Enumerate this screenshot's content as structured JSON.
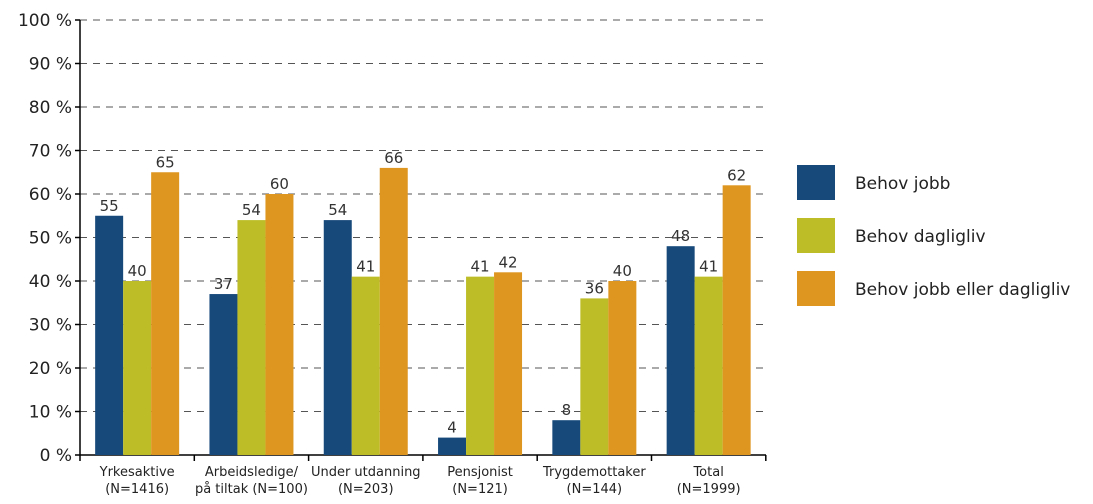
{
  "chart_data": {
    "type": "bar",
    "categories": [
      [
        "Yrkesaktive",
        "(N=1416)"
      ],
      [
        "Arbeidsledige/",
        "på tiltak (N=100)"
      ],
      [
        "Under utdanning",
        "(N=203)"
      ],
      [
        "Pensjonist",
        "(N=121)"
      ],
      [
        "Trygdemottaker",
        "(N=144)"
      ],
      [
        "Total",
        "(N=1999)"
      ]
    ],
    "series": [
      {
        "name": "Behov  jobb",
        "color": "#17497b",
        "values": [
          55,
          37,
          54,
          4,
          8,
          48
        ]
      },
      {
        "name": "Behov  dagligliv",
        "color": "#bcbd27",
        "values": [
          40,
          54,
          41,
          41,
          36,
          41
        ]
      },
      {
        "name": "Behov jobb eller dagligliv",
        "color": "#de9620",
        "values": [
          65,
          60,
          66,
          42,
          40,
          62
        ]
      }
    ],
    "ylim": [
      0,
      100
    ],
    "yticks": [
      0,
      10,
      20,
      30,
      40,
      50,
      60,
      70,
      80,
      90,
      100
    ],
    "ytick_suffix": " %",
    "grid": "dashed horizontal",
    "legend": "right",
    "title": "",
    "xlabel": "",
    "ylabel": ""
  }
}
